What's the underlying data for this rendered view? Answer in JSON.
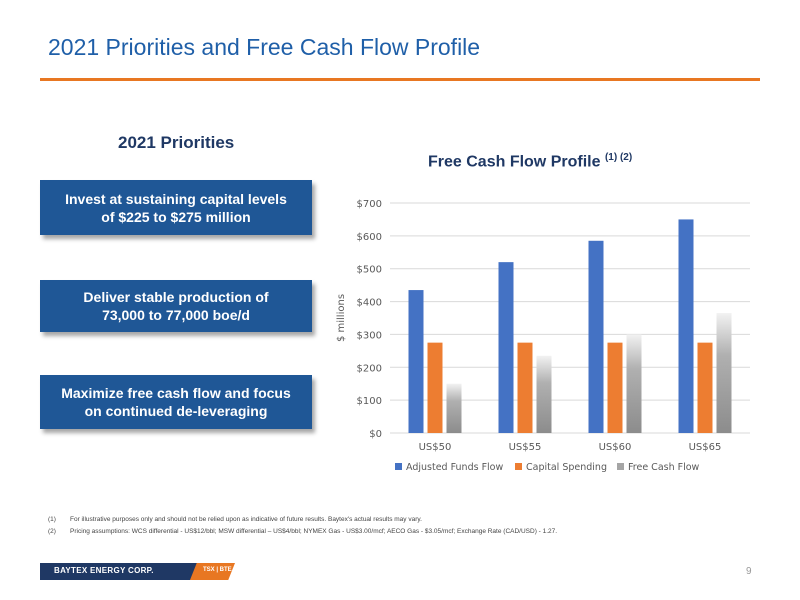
{
  "slide": {
    "title": "2021 Priorities and Free Cash Flow Profile",
    "priorities_heading": "2021 Priorities",
    "priorities": [
      {
        "line1": "Invest at sustaining capital levels",
        "line2": "of $225 to $275 million"
      },
      {
        "line1": "Deliver stable production of",
        "line2": "73,000 to 77,000 boe/d"
      },
      {
        "line1": "Maximize free cash flow and focus",
        "line2": "on continued de-leveraging"
      }
    ],
    "chart_title": "Free Cash Flow Profile",
    "chart_title_note": "(1) (2)",
    "notes": [
      {
        "num": "(1)",
        "text": "For illustrative purposes only and should not be relied upon as indicative of future results. Baytex's actual results may vary."
      },
      {
        "num": "(2)",
        "text": "Pricing assumptions: WCS differential - US$12/bbl; MSW differential – US$4/bbl; NYMEX Gas - US$3.00/mcf; AECO Gas - $3.05/mcf; Exchange Rate (CAD/USD) - 1.27."
      }
    ],
    "footer_company": "BAYTEX ENERGY CORP.",
    "footer_ticker": "TSX | BTE",
    "page_number": "9"
  },
  "colors": {
    "title": "#1f5fa8",
    "accent": "#e87722",
    "box": "#1f5796"
  },
  "chart_data": {
    "type": "bar",
    "categories": [
      "US$50",
      "US$55",
      "US$60",
      "US$65"
    ],
    "series": [
      {
        "name": "Adjusted Funds Flow",
        "values": [
          435,
          520,
          585,
          650
        ],
        "color": "#4472c4"
      },
      {
        "name": "Capital Spending",
        "values": [
          275,
          275,
          275,
          275
        ],
        "color": "#ed7d31"
      },
      {
        "name": "Free Cash Flow",
        "values": [
          150,
          235,
          300,
          365
        ],
        "color": "#a5a5a5"
      }
    ],
    "ylabel": "$ millions",
    "ylim": [
      0,
      700
    ],
    "yticks": [
      0,
      100,
      200,
      300,
      400,
      500,
      600,
      700
    ],
    "ytick_labels": [
      "$0",
      "$100",
      "$200",
      "$300",
      "$400",
      "$500",
      "$600",
      "$700"
    ],
    "grid": true,
    "legend": "bottom"
  }
}
